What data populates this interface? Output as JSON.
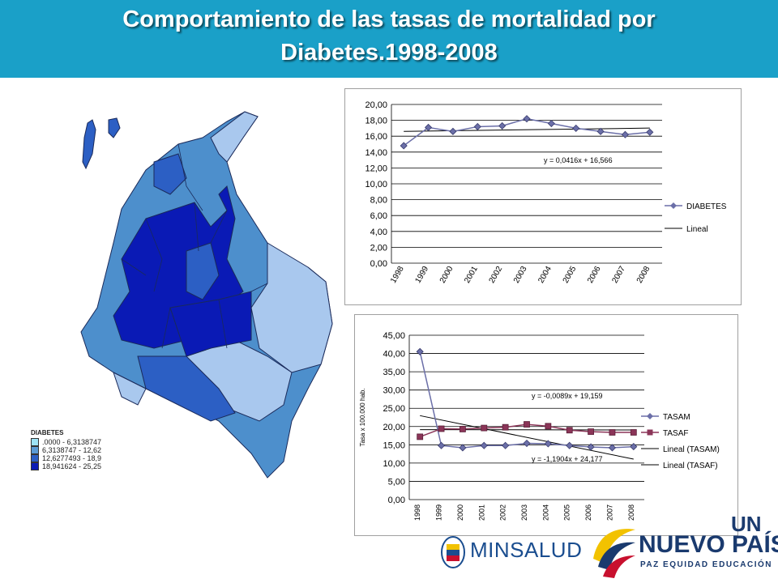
{
  "header": {
    "title_line1": "Comportamiento de las tasas de mortalidad por",
    "title_line2": "Diabetes.1998-2008"
  },
  "map_legend": {
    "title": "DIABETES",
    "items": [
      {
        "label": ".0000 - 6,3138747",
        "color": "#9ee3f5"
      },
      {
        "label": "6,3138747 - 12,62",
        "color": "#5b9bd5"
      },
      {
        "label": "12,6277493 - 18,9",
        "color": "#2c5fc4"
      },
      {
        "label": "18,941624 - 25,25",
        "color": "#0a1ab5"
      }
    ]
  },
  "chart_data": [
    {
      "type": "line",
      "categories": [
        "1998",
        "1999",
        "2000",
        "2001",
        "2002",
        "2003",
        "2004",
        "2005",
        "2006",
        "2007",
        "2008"
      ],
      "series": [
        {
          "name": "DIABETES",
          "values": [
            14.8,
            17.1,
            16.6,
            17.2,
            17.3,
            18.2,
            17.6,
            17.0,
            16.6,
            16.2,
            16.5
          ],
          "color": "#6b6fa8"
        }
      ],
      "trendlines": [
        {
          "name": "Lineal",
          "slope": 0.0416,
          "intercept": 16.566,
          "equation": "y = 0,0416x + 16,566"
        }
      ],
      "ylim": [
        0,
        20
      ],
      "ytick_labels": [
        "0,00",
        "2,00",
        "4,00",
        "6,00",
        "8,00",
        "10,00",
        "12,00",
        "14,00",
        "16,00",
        "18,00",
        "20,00"
      ],
      "ylabel": "",
      "xlabel": "",
      "legend_position": "right",
      "grid": true
    },
    {
      "type": "line",
      "categories": [
        "1998",
        "1999",
        "2000",
        "2001",
        "2002",
        "2003",
        "2004",
        "2005",
        "2006",
        "2007",
        "2008"
      ],
      "series": [
        {
          "name": "TASAM",
          "values": [
            40.5,
            14.8,
            14.2,
            14.8,
            14.8,
            15.4,
            15.3,
            14.8,
            14.4,
            14.2,
            14.5
          ],
          "color": "#6b6fa8"
        },
        {
          "name": "TASAF",
          "values": [
            17.2,
            19.4,
            19.3,
            19.6,
            19.8,
            20.6,
            20.1,
            19.0,
            18.6,
            18.4,
            18.4
          ],
          "color": "#8b3558"
        }
      ],
      "trendlines": [
        {
          "name": "Lineal (TASAM)",
          "slope": -1.1904,
          "intercept": 24.177,
          "equation": "y = -1,1904x + 24,177"
        },
        {
          "name": "Lineal (TASAF)",
          "slope": -0.0089,
          "intercept": 19.159,
          "equation": "y = -0,0089x + 19,159"
        }
      ],
      "ylim": [
        0,
        45
      ],
      "ytick_labels": [
        "0,00",
        "5,00",
        "10,00",
        "15,00",
        "20,00",
        "25,00",
        "30,00",
        "35,00",
        "40,00",
        "45,00"
      ],
      "ylabel": "Tasa x 100.000 hab.",
      "xlabel": "",
      "legend_position": "right",
      "grid": true
    }
  ],
  "logos": {
    "minsalud": "MINSALUD",
    "np_top": "UN",
    "np_main": "NUEVO PAÍS",
    "np_sub": "PAZ  EQUIDAD  EDUCACIÓN"
  }
}
